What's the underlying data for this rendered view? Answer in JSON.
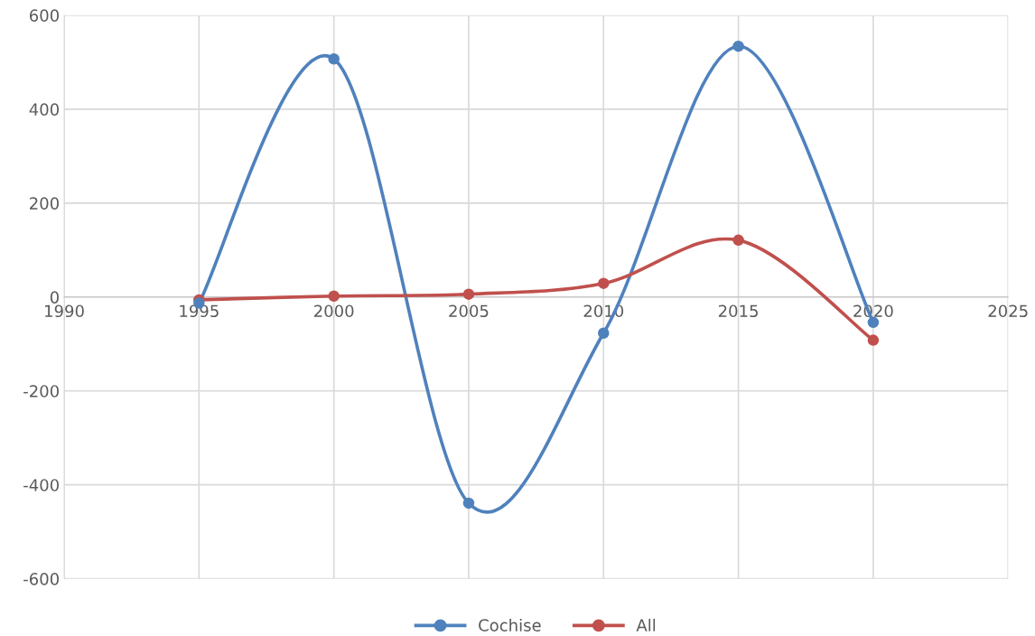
{
  "chart_data": {
    "type": "line",
    "x": [
      1995,
      2000,
      2005,
      2010,
      2015,
      2020
    ],
    "series": [
      {
        "name": "Cochise",
        "color": "#4f81bd",
        "values": [
          -13,
          507,
          -439,
          -77,
          534,
          -54
        ]
      },
      {
        "name": "All",
        "color": "#c0504d",
        "values": [
          -6,
          2,
          6,
          29,
          121,
          -92
        ]
      }
    ],
    "xlim": [
      1990,
      2025
    ],
    "xticks": [
      1990,
      1995,
      2000,
      2005,
      2010,
      2015,
      2020,
      2025
    ],
    "ylim": [
      -600,
      600
    ],
    "yticks": [
      -600,
      -400,
      -200,
      0,
      200,
      400,
      600
    ],
    "grid": true,
    "legend": "bottom",
    "marker": "circle",
    "line_style": "solid"
  }
}
